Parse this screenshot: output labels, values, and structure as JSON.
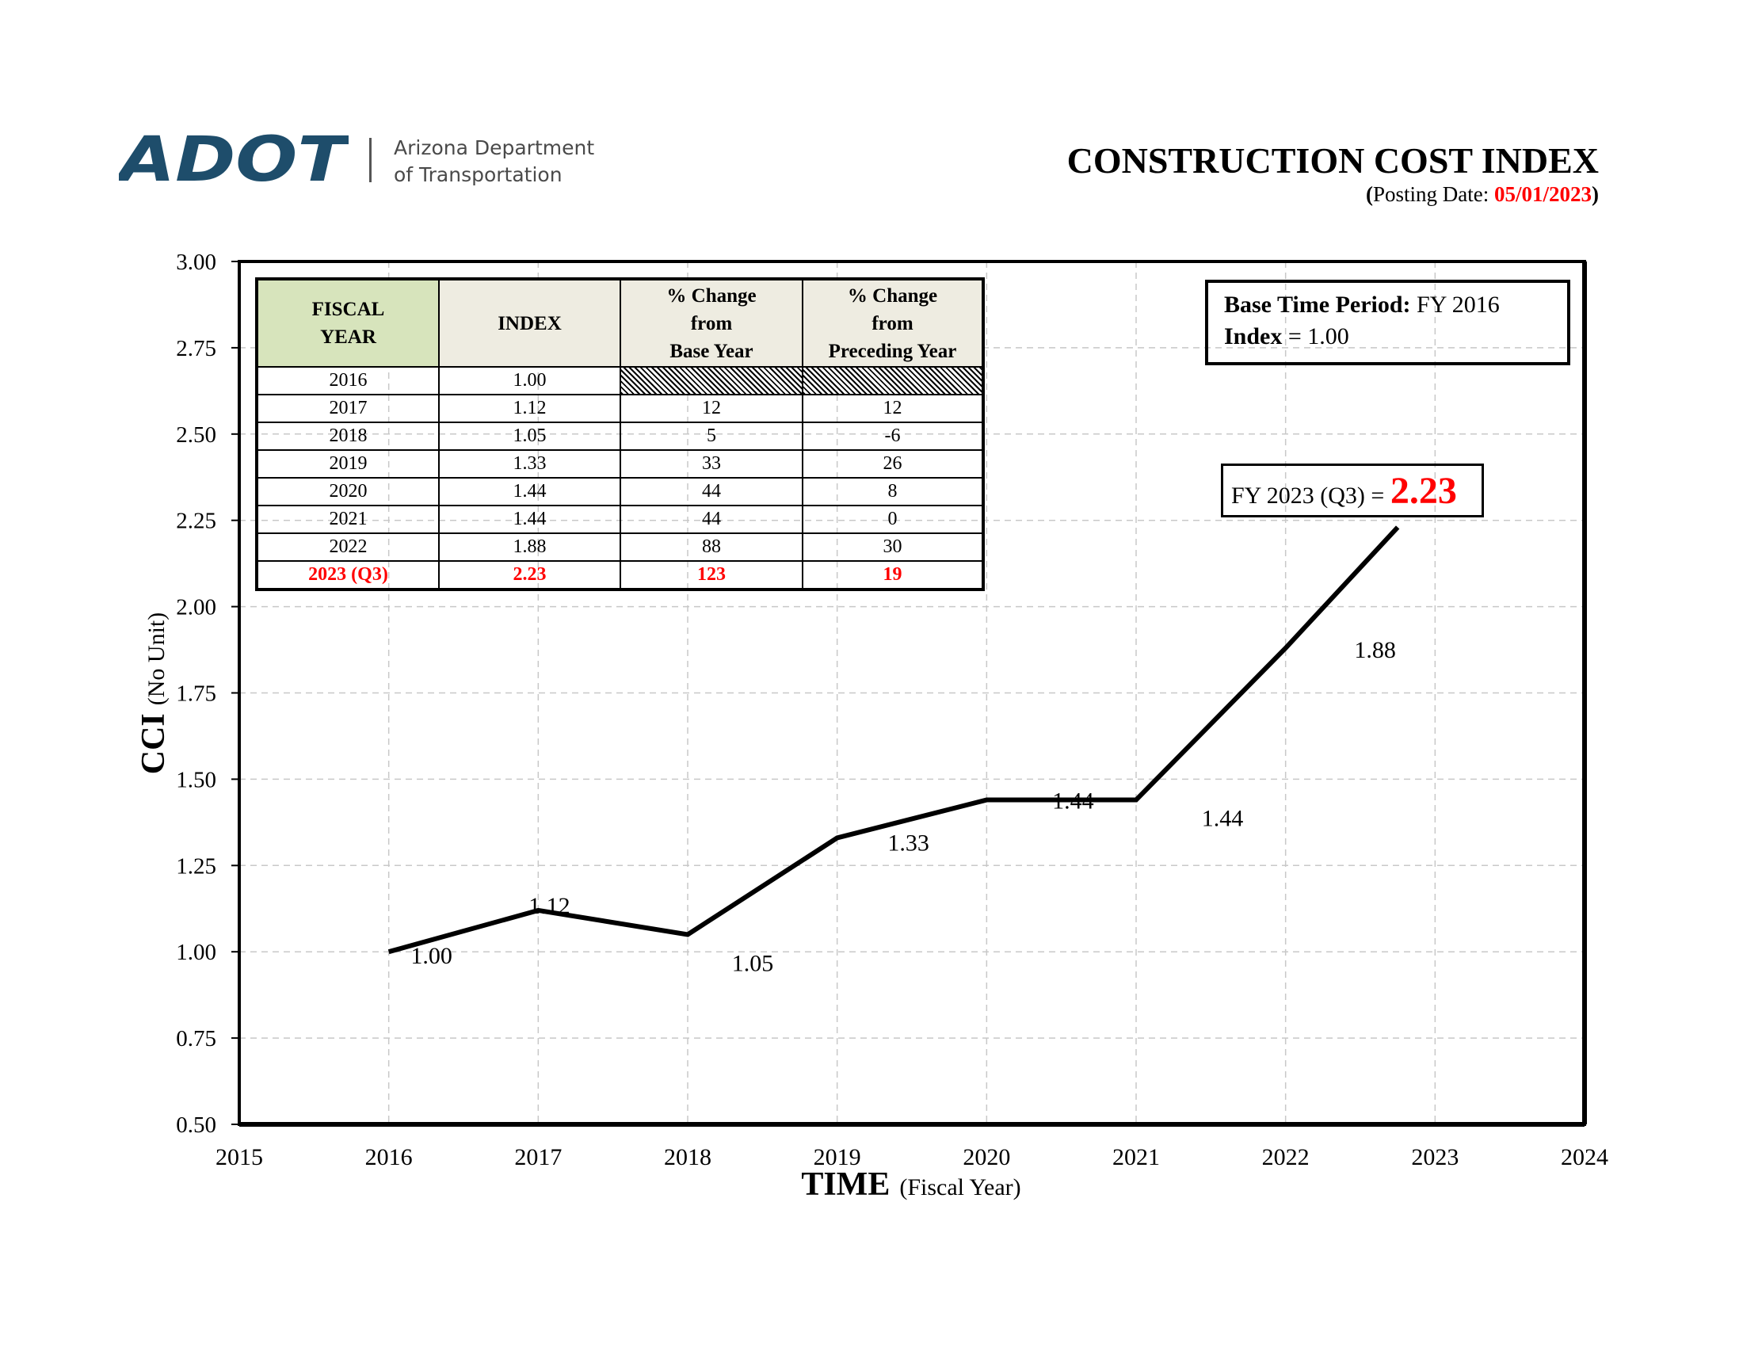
{
  "header": {
    "logo_text": "ADOT",
    "org_line1": "Arizona Department",
    "org_line2": "of Transportation",
    "title": "CONSTRUCTION COST INDEX",
    "posting_label": "Posting Date: ",
    "posting_date": "05/01/2023",
    "brand_color": "#1e4d6b"
  },
  "base_box": {
    "label1": "Base Time Period:",
    "value1": " FY 2016",
    "label2": "Index",
    "value2": " = 1.00"
  },
  "callout": {
    "text": "FY 2023 (Q3) = ",
    "value": "2.23"
  },
  "table": {
    "headers": [
      "FISCAL YEAR",
      "INDEX",
      "% Change from Base Year",
      "% Change from Preceding Year"
    ],
    "rows": [
      [
        "2016",
        "1.00",
        "",
        ""
      ],
      [
        "2017",
        "1.12",
        "12",
        "12"
      ],
      [
        "2018",
        "1.05",
        "5",
        "-6"
      ],
      [
        "2019",
        "1.33",
        "33",
        "26"
      ],
      [
        "2020",
        "1.44",
        "44",
        "8"
      ],
      [
        "2021",
        "1.44",
        "44",
        "0"
      ],
      [
        "2022",
        "1.88",
        "88",
        "30"
      ],
      [
        "2023 (Q3)",
        "2.23",
        "123",
        "19"
      ]
    ]
  },
  "chart_data": {
    "type": "line",
    "xlabel": "TIME",
    "xlabel_sub": "(Fiscal Year)",
    "ylabel": "CCI",
    "ylabel_sub": "(No Unit)",
    "xlim": [
      2015,
      2024
    ],
    "ylim": [
      0.5,
      3.0
    ],
    "xticks": [
      "2015",
      "2016",
      "2017",
      "2018",
      "2019",
      "2020",
      "2021",
      "2022",
      "2023",
      "2024"
    ],
    "yticks": [
      "0.50",
      "0.75",
      "1.00",
      "1.25",
      "1.50",
      "1.75",
      "2.00",
      "2.25",
      "2.50",
      "2.75",
      "3.00"
    ],
    "grid": true,
    "series": [
      {
        "x": [
          2016,
          2017,
          2018,
          2019,
          2020,
          2021,
          2022,
          2022.75
        ],
        "y": [
          1.0,
          1.12,
          1.05,
          1.33,
          1.44,
          1.44,
          1.88,
          2.23
        ],
        "labels": [
          "1.00",
          "1.12",
          "1.05",
          "1.33",
          "1.44",
          "1.44",
          "1.88",
          ""
        ],
        "color": "#000000"
      }
    ]
  }
}
